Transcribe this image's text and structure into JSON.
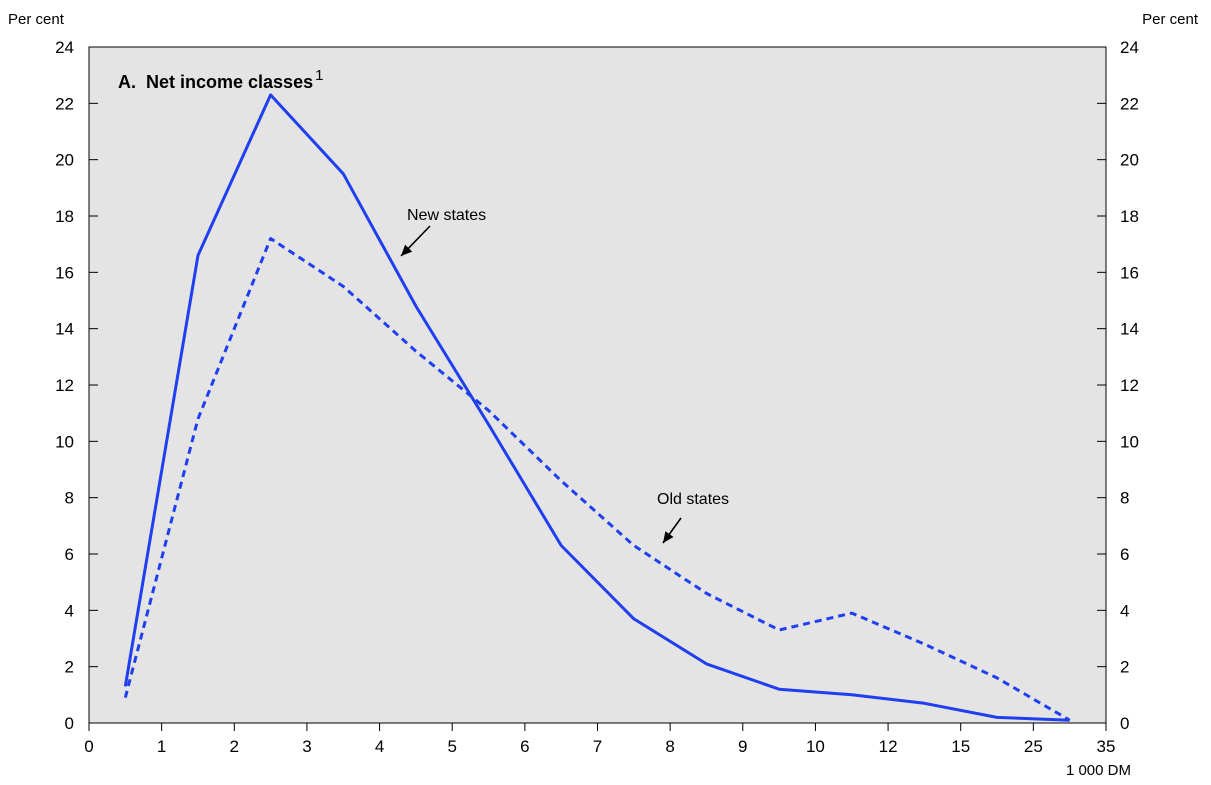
{
  "chart_data": {
    "type": "line",
    "title": "A.  Net income classes",
    "title_superscript": "1",
    "ylabel_left": "Per cent",
    "ylabel_right": "Per cent",
    "xlabel": "1 000 DM",
    "x_tick_labels": [
      "0",
      "1",
      "2",
      "3",
      "4",
      "5",
      "6",
      "7",
      "8",
      "9",
      "10",
      "12",
      "15",
      "25",
      "35"
    ],
    "y_ticks": [
      0,
      2,
      4,
      6,
      8,
      10,
      12,
      14,
      16,
      18,
      20,
      22,
      24
    ],
    "ylim": [
      0,
      24
    ],
    "grid": false,
    "background": "#e4e4e4",
    "line_color": "#1f3ff0",
    "x_positions": [
      0.5,
      1.5,
      2.5,
      3.5,
      4.5,
      5.5,
      6.5,
      7.5,
      8.5,
      9.5,
      10.5,
      11.5,
      12.5,
      13.5
    ],
    "series": [
      {
        "name": "New states",
        "style": "solid",
        "values": [
          1.3,
          16.6,
          22.3,
          19.5,
          14.8,
          10.6,
          6.3,
          3.7,
          2.1,
          1.2,
          1.0,
          0.7,
          0.2,
          0.1
        ]
      },
      {
        "name": "Old states",
        "style": "dashed",
        "values": [
          0.9,
          10.8,
          17.2,
          15.5,
          13.2,
          11.1,
          8.6,
          6.3,
          4.6,
          3.3,
          3.9,
          2.8,
          1.6,
          0.1
        ]
      }
    ],
    "annotations": [
      {
        "text": "New states",
        "series": "New states"
      },
      {
        "text": "Old states",
        "series": "Old states"
      }
    ]
  }
}
